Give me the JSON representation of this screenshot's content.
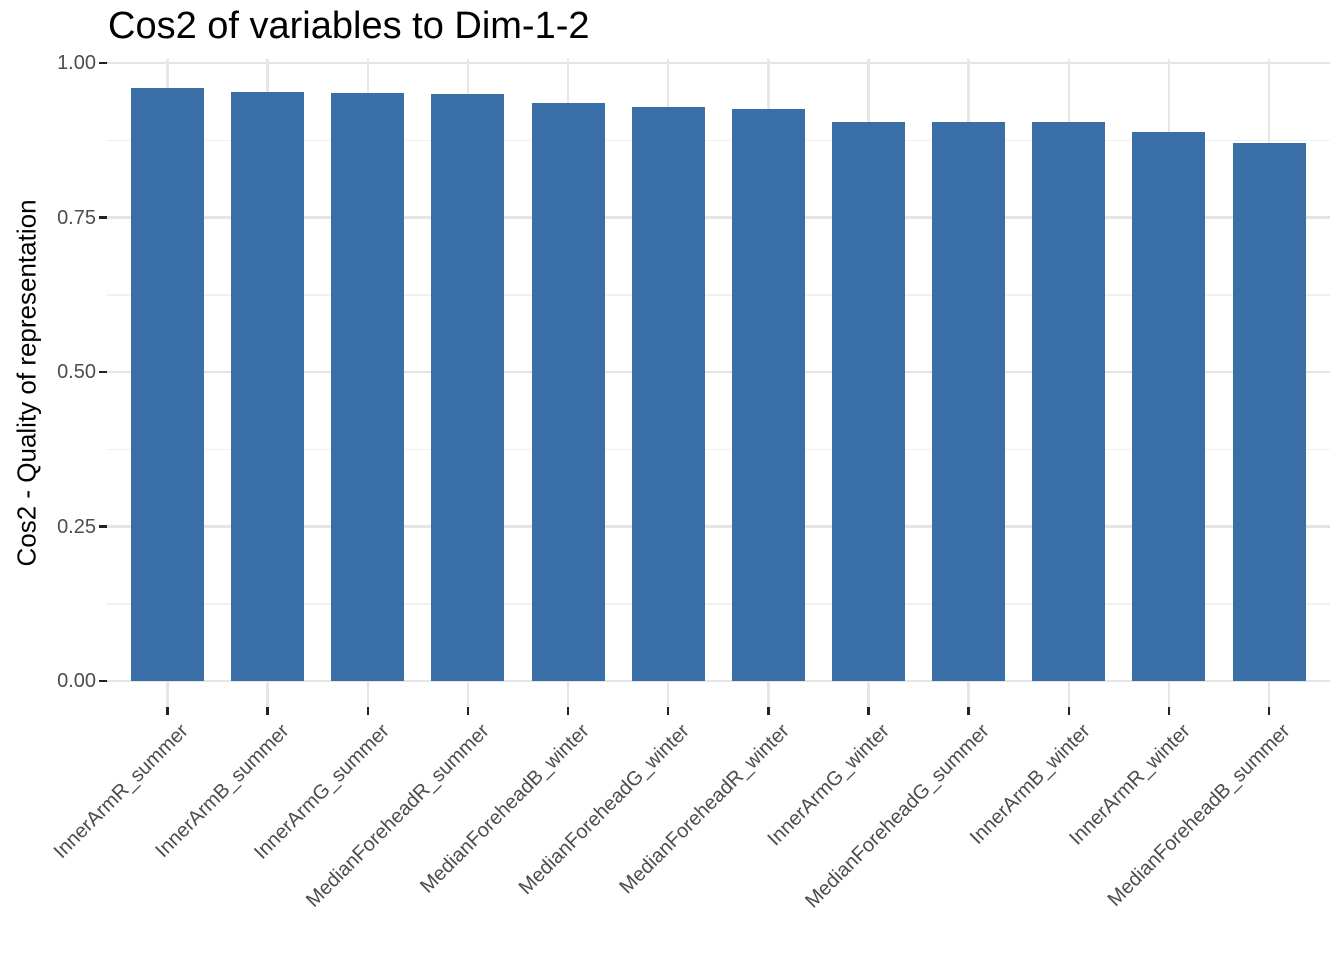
{
  "chart_data": {
    "type": "bar",
    "title": "Cos2 of variables to Dim-1-2",
    "xlabel": "",
    "ylabel": "Cos2 - Quality of representation",
    "categories": [
      "InnerArmR_summer",
      "InnerArmB_summer",
      "InnerArmG_summer",
      "MedianForeheadR_summer",
      "MedianForeheadB_winter",
      "MedianForeheadG_winter",
      "MedianForeheadR_winter",
      "InnerArmG_winter",
      "MedianForeheadG_summer",
      "InnerArmB_winter",
      "InnerArmR_winter",
      "MedianForeheadB_summer"
    ],
    "values": [
      0.96,
      0.953,
      0.952,
      0.95,
      0.935,
      0.929,
      0.925,
      0.905,
      0.904,
      0.904,
      0.889,
      0.87
    ],
    "ylim": [
      0,
      1.0
    ],
    "yticks": [
      0,
      0.25,
      0.5,
      0.75,
      1.0
    ],
    "ytick_labels": [
      "0.00",
      "0.25",
      "0.50",
      "0.75",
      "1.00"
    ],
    "yticks_minor": [
      0.125,
      0.375,
      0.625,
      0.875
    ],
    "grid": "major and minor horizontal, major vertical per category",
    "legend_position": "none",
    "bar_color": "#3a6ea6",
    "x_label_angle_deg": 45
  }
}
